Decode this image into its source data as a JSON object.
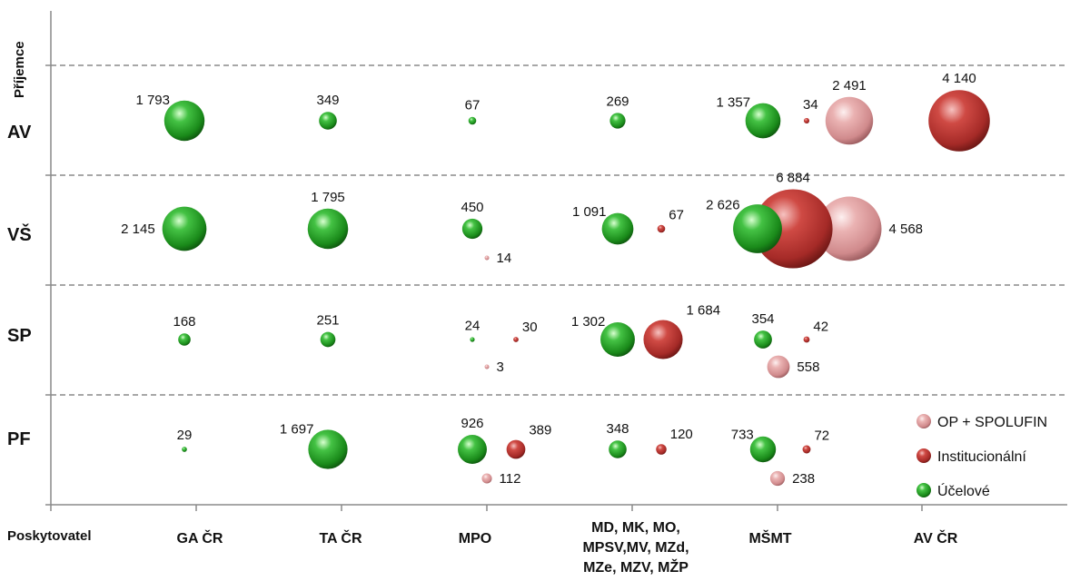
{
  "chart_data": {
    "type": "scatter",
    "subtype": "bubble",
    "ylabel": "Příjemce",
    "xlabel": "Poskytovatel",
    "row_labels": [
      "AV",
      "VŠ",
      "SP",
      "PF"
    ],
    "column_labels": [
      [
        "GA ČR"
      ],
      [
        "TA ČR"
      ],
      [
        "MPO"
      ],
      [
        "MD, MK, MO,",
        "MPSV,MV, MZd,",
        "MZe, MZV, MŽP"
      ],
      [
        "MŠMT"
      ],
      [
        "AV ČR"
      ]
    ],
    "legend_position": "bottom-right",
    "grid": "dashed horizontal separators",
    "series": [
      {
        "name": "OP + SPOLUFIN",
        "color": "#e8a6a8",
        "points": [
          {
            "row": "AV",
            "column": 4,
            "value": 2491,
            "label": "2 491"
          },
          {
            "row": "VŠ",
            "column": 4,
            "value": 4568,
            "label": "4 568"
          },
          {
            "row": "VŠ",
            "column": 2,
            "value": 14,
            "label": "14"
          },
          {
            "row": "SP",
            "column": 2,
            "value": 3,
            "label": "3"
          },
          {
            "row": "SP",
            "column": 4,
            "value": 558,
            "label": "558"
          },
          {
            "row": "PF",
            "column": 2,
            "value": 112,
            "label": "112"
          },
          {
            "row": "PF",
            "column": 4,
            "value": 238,
            "label": "238"
          }
        ]
      },
      {
        "name": "Institucionální",
        "color": "#c0392b",
        "points": [
          {
            "row": "AV",
            "column": 4,
            "value": 34,
            "label": "34"
          },
          {
            "row": "AV",
            "column": 5,
            "value": 4140,
            "label": "4 140"
          },
          {
            "row": "VŠ",
            "column": 3,
            "value": 67,
            "label": "67"
          },
          {
            "row": "VŠ",
            "column": 4,
            "value": 6884,
            "label": "6 884"
          },
          {
            "row": "SP",
            "column": 2,
            "value": 30,
            "label": "30"
          },
          {
            "row": "SP",
            "column": 3,
            "value": 1684,
            "label": "1 684"
          },
          {
            "row": "SP",
            "column": 4,
            "value": 42,
            "label": "42"
          },
          {
            "row": "PF",
            "column": 2,
            "value": 389,
            "label": "389"
          },
          {
            "row": "PF",
            "column": 3,
            "value": 120,
            "label": "120"
          },
          {
            "row": "PF",
            "column": 4,
            "value": 72,
            "label": "72"
          }
        ]
      },
      {
        "name": "Účelové",
        "color": "#1e9a1e",
        "points": [
          {
            "row": "AV",
            "column": 0,
            "value": 1793,
            "label": "1 793"
          },
          {
            "row": "AV",
            "column": 1,
            "value": 349,
            "label": "349"
          },
          {
            "row": "AV",
            "column": 2,
            "value": 67,
            "label": "67"
          },
          {
            "row": "AV",
            "column": 3,
            "value": 269,
            "label": "269"
          },
          {
            "row": "AV",
            "column": 4,
            "value": 1357,
            "label": "1 357"
          },
          {
            "row": "VŠ",
            "column": 0,
            "value": 2145,
            "label": "2 145"
          },
          {
            "row": "VŠ",
            "column": 1,
            "value": 1795,
            "label": "1 795"
          },
          {
            "row": "VŠ",
            "column": 2,
            "value": 450,
            "label": "450"
          },
          {
            "row": "VŠ",
            "column": 3,
            "value": 1091,
            "label": "1 091"
          },
          {
            "row": "VŠ",
            "column": 4,
            "value": 2626,
            "label": "2 626"
          },
          {
            "row": "SP",
            "column": 0,
            "value": 168,
            "label": "168"
          },
          {
            "row": "SP",
            "column": 1,
            "value": 251,
            "label": "251"
          },
          {
            "row": "SP",
            "column": 2,
            "value": 24,
            "label": "24"
          },
          {
            "row": "SP",
            "column": 3,
            "value": 1302,
            "label": "1 302"
          },
          {
            "row": "SP",
            "column": 4,
            "value": 354,
            "label": "354"
          },
          {
            "row": "PF",
            "column": 0,
            "value": 29,
            "label": "29"
          },
          {
            "row": "PF",
            "column": 1,
            "value": 1697,
            "label": "1 697"
          },
          {
            "row": "PF",
            "column": 2,
            "value": 926,
            "label": "926"
          },
          {
            "row": "PF",
            "column": 3,
            "value": 348,
            "label": "348"
          },
          {
            "row": "PF",
            "column": 4,
            "value": 733,
            "label": "733"
          }
        ]
      }
    ]
  }
}
